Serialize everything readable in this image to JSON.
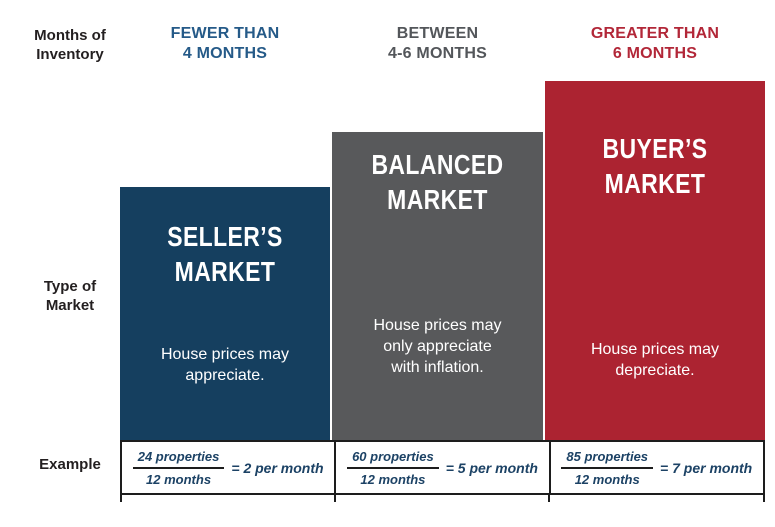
{
  "row_labels": {
    "inventory_line1": "Months of",
    "inventory_line2": "Inventory",
    "market_line1": "Type of",
    "market_line2": "Market",
    "example": "Example"
  },
  "columns": [
    {
      "id": "sellers-market",
      "header_line1": "FEWER THAN",
      "header_line2": "4 MONTHS",
      "header_color": "#255A88",
      "block_color": "#153F5F",
      "title_line1": "SELLER’S",
      "title_line2": "MARKET",
      "description": "House prices may appreciate.",
      "example_numerator": "24 properties",
      "example_denominator": "12 months",
      "example_result": "= 2 per month"
    },
    {
      "id": "balanced-market",
      "header_line1": "BETWEEN",
      "header_line2": "4-6 MONTHS",
      "header_color": "#53565A",
      "block_color": "#58595B",
      "title_line1": "BALANCED",
      "title_line2": "MARKET",
      "description": "House prices may only appreciate with inflation.",
      "example_numerator": "60 properties",
      "example_denominator": "12 months",
      "example_result": "= 5 per month"
    },
    {
      "id": "buyers-market",
      "header_line1": "GREATER THAN",
      "header_line2": "6 MONTHS",
      "header_color": "#B22738",
      "block_color": "#AC2331",
      "title_line1": "BUYER’S",
      "title_line2": "MARKET",
      "description": "House prices may depreciate.",
      "example_numerator": "85 properties",
      "example_denominator": "12 months",
      "example_result": "= 7 per month"
    }
  ],
  "text_colors": {
    "row_label": "#231F20",
    "example_text": "#1C4265"
  }
}
